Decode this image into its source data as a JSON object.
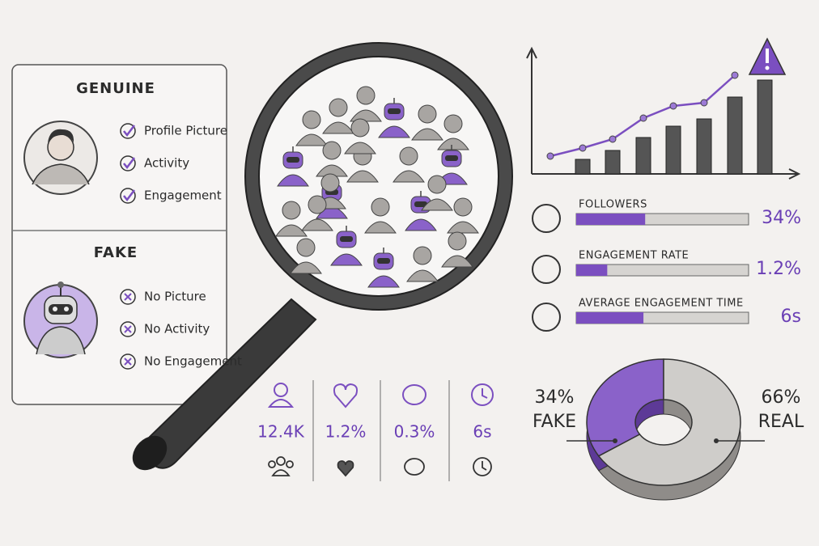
{
  "genuine": {
    "title": "GENUINE",
    "items": [
      "Profile Picture",
      "Activity",
      "Engagement"
    ]
  },
  "fake": {
    "title": "FAKE",
    "items": [
      "No Picture",
      "No Activity",
      "No Engagement"
    ]
  },
  "trend_chart": {
    "bars": [
      18,
      29,
      45,
      59,
      68,
      95,
      116
    ],
    "line": [
      22,
      32,
      43,
      69,
      84,
      88,
      122
    ]
  },
  "metrics": [
    {
      "label": "FOLLOWERS",
      "value": "34%",
      "fill": 40
    },
    {
      "label": "ENGAGEMENT RATE",
      "value": "1.2%",
      "fill": 18
    },
    {
      "label": "AVERAGE ENGAGEMENT TIME",
      "value": "6s",
      "fill": 39
    }
  ],
  "stats": [
    "12.4K",
    "1.2%",
    "0.3%",
    "6s"
  ],
  "chart_data": {
    "type": "pie",
    "categories": [
      "FAKE",
      "REAL"
    ],
    "values": [
      34,
      66
    ],
    "value_labels": [
      "34%",
      "66%"
    ],
    "colors": [
      "#8a62c9",
      "#cfcdca"
    ]
  }
}
